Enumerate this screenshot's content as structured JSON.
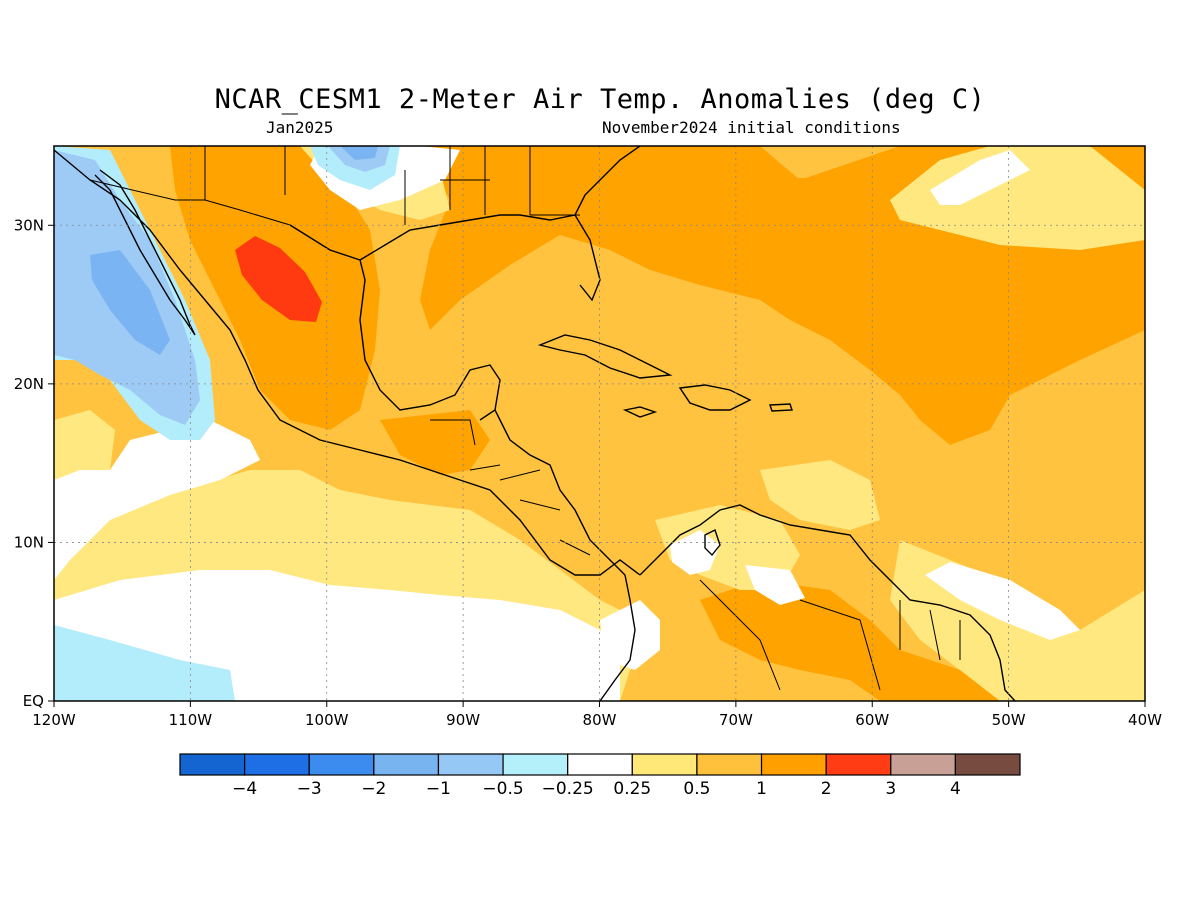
{
  "header": {
    "title": "NCAR_CESM1 2-Meter Air Temp. Anomalies (deg C)",
    "valid_month": "Jan2025",
    "initial_conditions": "November2024 initial conditions"
  },
  "map": {
    "lon_range": [
      -120,
      -40
    ],
    "lat_range": [
      0,
      35
    ],
    "lon_ticks": [
      {
        "value": -120,
        "label": "120W"
      },
      {
        "value": -110,
        "label": "110W"
      },
      {
        "value": -100,
        "label": "100W"
      },
      {
        "value": -90,
        "label": "90W"
      },
      {
        "value": -80,
        "label": "80W"
      },
      {
        "value": -70,
        "label": "70W"
      },
      {
        "value": -60,
        "label": "60W"
      },
      {
        "value": -50,
        "label": "50W"
      },
      {
        "value": -40,
        "label": "40W"
      }
    ],
    "lat_ticks": [
      {
        "value": 0,
        "label": "EQ"
      },
      {
        "value": 10,
        "label": "10N"
      },
      {
        "value": 20,
        "label": "20N"
      },
      {
        "value": 30,
        "label": "30N"
      }
    ],
    "grid": true,
    "anomaly_colors": {
      "neg_0_5_to_neg_1": "#9ecbf5",
      "neg_1_to_neg_2": "#7ab4f2",
      "neg_2_to_neg_3": "#4b9cef",
      "neg_0_25_to_neg_0_5": "#b3ecfa",
      "neutral": "#ffffff",
      "pos_0_25_to_0_5": "#ffe880",
      "pos_0_5_to_1": "#ffc340",
      "pos_1_to_2": "#ffa300",
      "pos_2_to_3": "#ff3a10"
    }
  },
  "colorbar": {
    "colors": [
      "#1464d2",
      "#1e6ee6",
      "#3c8cf0",
      "#78b4f0",
      "#96c8f5",
      "#b4f0fa",
      "#ffffff",
      "#ffe878",
      "#ffc03c",
      "#ffa000",
      "#ff3c14",
      "#c8a096",
      "#784b41"
    ],
    "labels": [
      "−4",
      "−3",
      "−2",
      "−1",
      "−0.5",
      "−0.25",
      "0.25",
      "0.5",
      "1",
      "2",
      "3",
      "4"
    ]
  }
}
